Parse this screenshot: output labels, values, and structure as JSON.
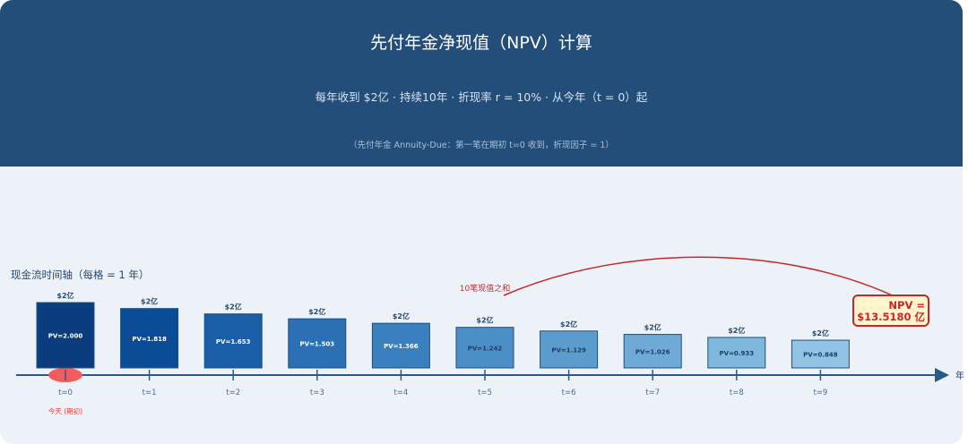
{
  "header": {
    "title": "先付年金净现值（NPV）计算",
    "subtitle": "每年收到 $2亿 · 持续10年 · 折现率 r = 10% · 从今年（t = 0）起",
    "note": "（先付年金 Annuity-Due：第一笔在期初 t=0 收到，折现因子 = 1）"
  },
  "timeline": {
    "title": "现金流时间轴（每格 = 1 年）",
    "axis_end_label": "年",
    "today_label": "今天 (期初)",
    "sum_label": "10笔现值之和",
    "npv_label_line1": "NPV =",
    "npv_label_line2": "$13.5180 亿"
  },
  "chart_data": {
    "type": "bar",
    "categories": [
      "t=0",
      "t=1",
      "t=2",
      "t=3",
      "t=4",
      "t=5",
      "t=6",
      "t=7",
      "t=8",
      "t=9"
    ],
    "cash_flow_labels": [
      "$2亿",
      "$2亿",
      "$2亿",
      "$2亿",
      "$2亿",
      "$2亿",
      "$2亿",
      "$2亿",
      "$2亿",
      "$2亿"
    ],
    "values": [
      2.0,
      1.818,
      1.653,
      1.503,
      1.366,
      1.242,
      1.129,
      1.026,
      0.933,
      0.848
    ],
    "value_labels": [
      "PV=2.000",
      "PV=1.818",
      "PV=1.653",
      "PV=1.503",
      "PV=1.366",
      "PV=1.242",
      "PV=1.129",
      "PV=1.026",
      "PV=0.933",
      "PV=0.848"
    ],
    "colors": [
      "#0b3d7e",
      "#0b4c96",
      "#1a5ea8",
      "#2b70b4",
      "#3a7fbe",
      "#4b8fc7",
      "#5c9ccd",
      "#6eaad5",
      "#80b7dd",
      "#92c3e4"
    ],
    "total": 13.518
  }
}
